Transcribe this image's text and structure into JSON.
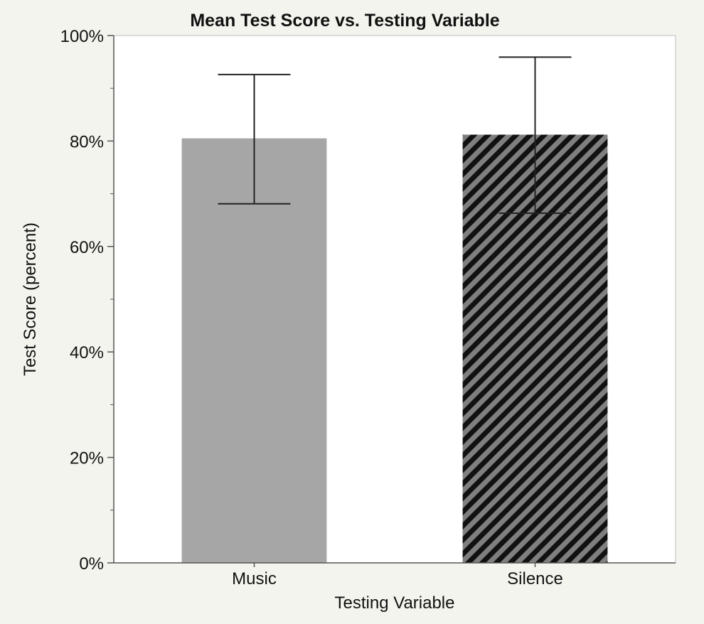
{
  "chart_data": {
    "type": "bar",
    "title": "Mean Test Score vs. Testing Variable",
    "xlabel": "Testing Variable",
    "ylabel": "Test Score (percent)",
    "categories": [
      "Music",
      "Silence"
    ],
    "values": [
      80.5,
      81.2
    ],
    "error_bars": {
      "upper": [
        92.6,
        95.9
      ],
      "lower": [
        68.1,
        66.3
      ]
    },
    "ylim": [
      0,
      100
    ],
    "yticks": [
      "0%",
      "20%",
      "40%",
      "60%",
      "80%",
      "100%"
    ],
    "ytick_values": [
      0,
      20,
      40,
      60,
      80,
      100
    ],
    "grid": false,
    "bar_styles": [
      "solid",
      "diagonal-hatch"
    ],
    "colors": {
      "music_fill": "#a6a6a6",
      "silence_fill": "#7f7f7f",
      "hatch": "#111111",
      "plot_background": "#ffffff",
      "page_background": "#f4f4ef",
      "axis": "#555555",
      "error_bar": "#222222"
    }
  }
}
